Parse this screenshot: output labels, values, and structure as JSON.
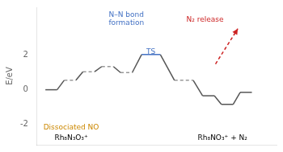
{
  "chart_data": {
    "type": "line",
    "ylabel": "E/eV",
    "xlim": [
      0.0,
      10.2
    ],
    "ylim": [
      -3.2,
      4.8
    ],
    "yticks": [
      -2,
      0,
      2
    ],
    "grid": false,
    "tick_labels": "y",
    "series": [
      {
        "x": [
          0.35,
          0.85
        ],
        "values": [
          0.0,
          0.0
        ],
        "color": "#555555",
        "line_style": "solid"
      },
      {
        "x": [
          0.85,
          1.15
        ],
        "values": [
          0.0,
          0.55
        ],
        "color": "#555555",
        "line_style": "solid"
      },
      {
        "x": [
          1.15,
          1.65
        ],
        "values": [
          0.55,
          0.55
        ],
        "color": "#999999",
        "line_style": "dashed"
      },
      {
        "x": [
          1.65,
          1.95
        ],
        "values": [
          0.55,
          1.05
        ],
        "color": "#555555",
        "line_style": "solid"
      },
      {
        "x": [
          1.95,
          2.45
        ],
        "values": [
          1.05,
          1.05
        ],
        "color": "#999999",
        "line_style": "dashed"
      },
      {
        "x": [
          2.45,
          2.75
        ],
        "values": [
          1.05,
          1.35
        ],
        "color": "#555555",
        "line_style": "solid"
      },
      {
        "x": [
          2.75,
          3.25
        ],
        "values": [
          1.35,
          1.35
        ],
        "color": "#999999",
        "line_style": "dashed"
      },
      {
        "x": [
          3.25,
          3.55
        ],
        "values": [
          1.35,
          1.0
        ],
        "color": "#555555",
        "line_style": "solid"
      },
      {
        "x": [
          3.55,
          4.05
        ],
        "values": [
          1.0,
          1.0
        ],
        "color": "#999999",
        "line_style": "dashed"
      },
      {
        "x": [
          4.05,
          4.45
        ],
        "values": [
          1.0,
          2.05
        ],
        "color": "#555555",
        "line_style": "solid"
      },
      {
        "x": [
          4.45,
          5.25
        ],
        "values": [
          2.05,
          2.05
        ],
        "color": "#4472c4",
        "line_style": "solid"
      },
      {
        "x": [
          5.25,
          5.85
        ],
        "values": [
          2.05,
          0.55
        ],
        "color": "#555555",
        "line_style": "solid"
      },
      {
        "x": [
          5.85,
          6.65
        ],
        "values": [
          0.55,
          0.55
        ],
        "color": "#999999",
        "line_style": "dashed"
      },
      {
        "x": [
          6.65,
          7.05
        ],
        "values": [
          0.55,
          -0.35
        ],
        "color": "#555555",
        "line_style": "solid"
      },
      {
        "x": [
          7.05,
          7.55
        ],
        "values": [
          -0.35,
          -0.35
        ],
        "color": "#555555",
        "line_style": "solid"
      },
      {
        "x": [
          7.55,
          7.85
        ],
        "values": [
          -0.35,
          -0.85
        ],
        "color": "#555555",
        "line_style": "solid"
      },
      {
        "x": [
          7.85,
          8.35
        ],
        "values": [
          -0.85,
          -0.85
        ],
        "color": "#555555",
        "line_style": "solid"
      },
      {
        "x": [
          8.35,
          8.65
        ],
        "values": [
          -0.85,
          -0.15
        ],
        "color": "#555555",
        "line_style": "solid"
      },
      {
        "x": [
          8.65,
          9.15
        ],
        "values": [
          -0.15,
          -0.15
        ],
        "color": "#555555",
        "line_style": "solid"
      },
      {
        "x": [
          7.6,
          8.55
        ],
        "values": [
          1.5,
          3.55
        ],
        "color": "#cc2222",
        "line_style": "dashed",
        "marker": "arrow"
      }
    ],
    "annotations": [
      {
        "text": "TS",
        "x": 4.85,
        "y": 2.18,
        "color": "#4472c4"
      },
      {
        "text": "Rh₈N₃O₃⁺",
        "x": 1.45,
        "y": -2.82,
        "color": "black"
      },
      {
        "text": "Rh₈NO₃⁺ + N₂",
        "x": 7.9,
        "y": -2.82,
        "color": "black"
      },
      {
        "text": "Dissociated NO",
        "x": 1.45,
        "y": -2.18,
        "color": "#cc8800"
      },
      {
        "text": "N–N bond\nformation",
        "x": 3.8,
        "y": 4.1,
        "color": "#4472c4"
      },
      {
        "text": "N₂ release",
        "x": 7.15,
        "y": 4.05,
        "color": "#cc2222"
      }
    ]
  }
}
